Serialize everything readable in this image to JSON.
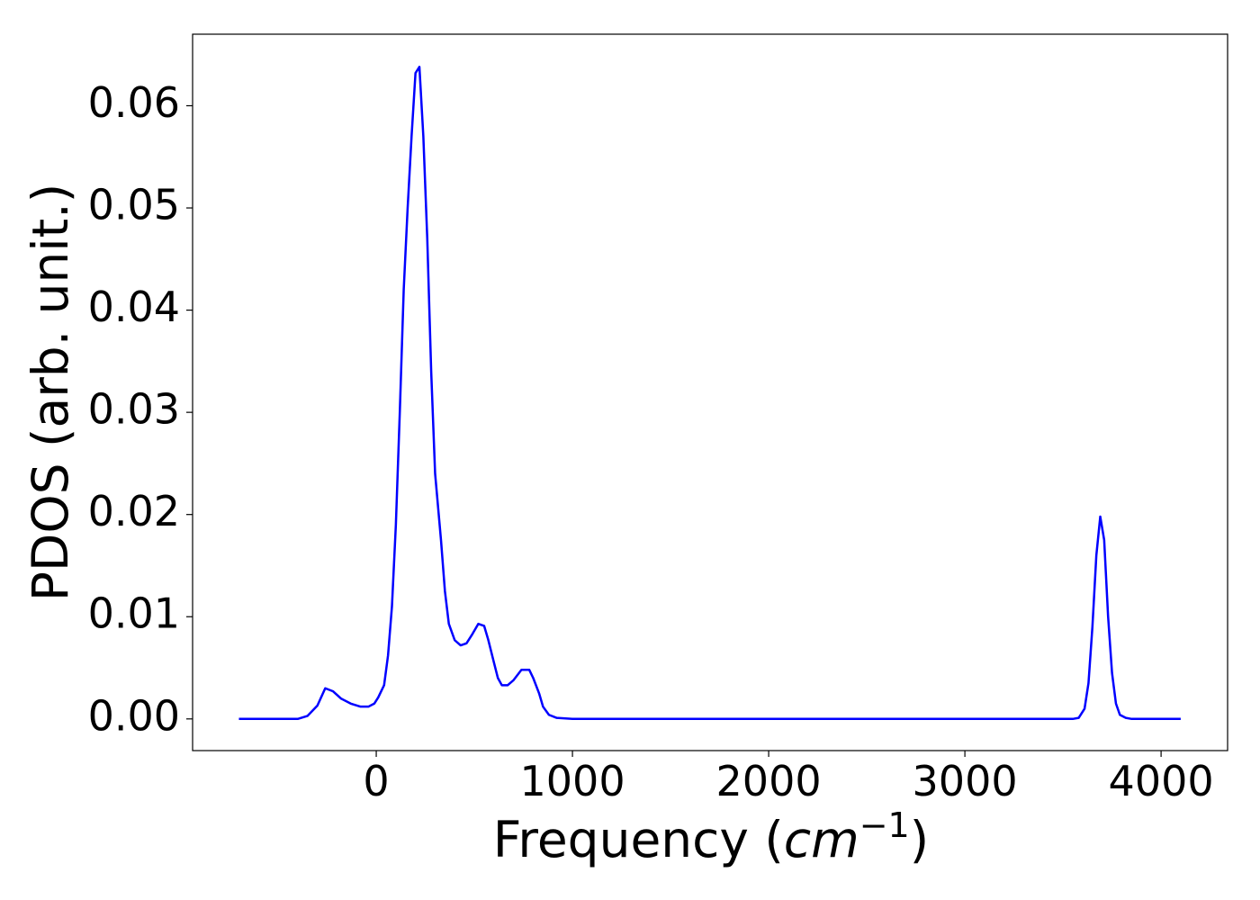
{
  "chart_data": {
    "type": "line",
    "xlabel": [
      "Frequency (",
      "cm",
      "−1",
      ")"
    ],
    "ylabel": "PDOS (arb. unit.)",
    "xlim": [
      -936,
      4339
    ],
    "ylim": [
      -0.0031,
      0.067
    ],
    "xticks": [
      0,
      1000,
      2000,
      3000,
      4000
    ],
    "yticks": [
      {
        "value": 0,
        "label": "0.00"
      },
      0.01,
      0.02,
      0.03,
      0.04,
      0.05,
      0.06
    ],
    "grid": false,
    "x": [
      -700,
      -400,
      -350,
      -300,
      -260,
      -220,
      -180,
      -130,
      -80,
      -40,
      -10,
      10,
      40,
      60,
      80,
      100,
      120,
      140,
      160,
      180,
      200,
      220,
      240,
      260,
      280,
      300,
      330,
      350,
      370,
      400,
      430,
      460,
      490,
      520,
      550,
      570,
      600,
      620,
      640,
      670,
      700,
      740,
      780,
      800,
      830,
      850,
      880,
      920,
      1000,
      3550,
      3580,
      3610,
      3630,
      3650,
      3670,
      3690,
      3710,
      3730,
      3750,
      3770,
      3790,
      3820,
      3850,
      4100
    ],
    "series": [
      {
        "color": "#0000ff",
        "values": [
          0,
          0,
          0.0003,
          0.0013,
          0.003,
          0.0027,
          0.002,
          0.0015,
          0.0012,
          0.0012,
          0.0015,
          0.0021,
          0.0033,
          0.0062,
          0.011,
          0.019,
          0.03,
          0.042,
          0.05,
          0.057,
          0.0632,
          0.0638,
          0.057,
          0.047,
          0.034,
          0.024,
          0.0175,
          0.0125,
          0.0093,
          0.0077,
          0.0072,
          0.0074,
          0.0083,
          0.0093,
          0.0091,
          0.0078,
          0.0055,
          0.004,
          0.0033,
          0.0033,
          0.0038,
          0.0048,
          0.0048,
          0.004,
          0.0025,
          0.0012,
          0.0004,
          0.0001,
          0,
          0,
          0.0001,
          0.001,
          0.0035,
          0.009,
          0.016,
          0.0198,
          0.0175,
          0.01,
          0.0045,
          0.0015,
          0.0004,
          0.0001,
          0,
          0
        ]
      }
    ]
  }
}
